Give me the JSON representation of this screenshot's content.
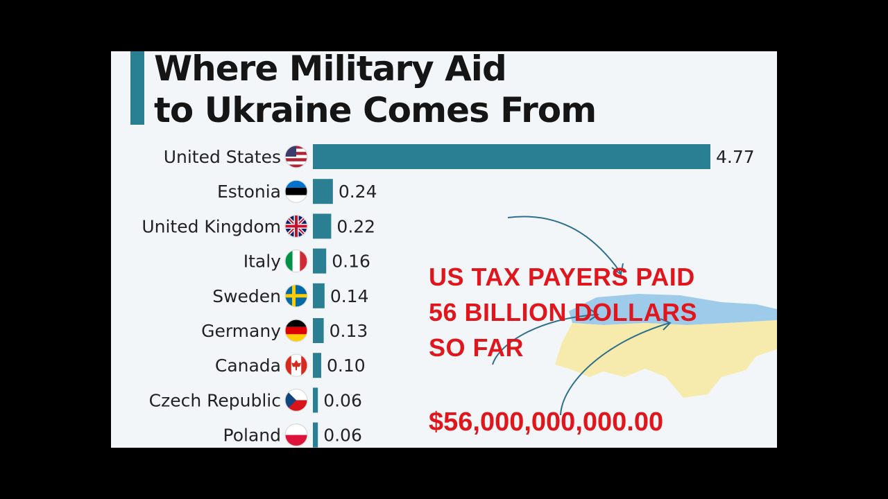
{
  "chart_data": {
    "type": "bar",
    "orientation": "horizontal",
    "title_lines": [
      "Where Military Aid",
      "to Ukraine Comes From"
    ],
    "categories": [
      "United States",
      "Estonia",
      "United Kingdom",
      "Italy",
      "Sweden",
      "Germany",
      "Canada",
      "Czech Republic",
      "Poland"
    ],
    "values": [
      4.77,
      0.24,
      0.22,
      0.16,
      0.14,
      0.13,
      0.1,
      0.06,
      0.06
    ],
    "value_labels": [
      "4.77",
      "0.24",
      "0.22",
      "0.16",
      "0.14",
      "0.13",
      "0.10",
      "0.06",
      "0.06"
    ],
    "flag_icons": [
      "us-flag-icon",
      "estonia-flag-icon",
      "uk-flag-icon",
      "italy-flag-icon",
      "sweden-flag-icon",
      "germany-flag-icon",
      "canada-flag-icon",
      "czech-flag-icon",
      "poland-flag-icon"
    ],
    "bar_color": "#2a7f92",
    "grid": false,
    "xlim": [
      0,
      4.77
    ]
  },
  "overlay": {
    "lines": [
      "US TAX PAYERS PAID",
      "56 BILLION DOLLARS",
      "SO FAR"
    ],
    "amount": "$56,000,000,000.00",
    "color": "#e0161c"
  },
  "background_map": {
    "name": "ukraine-map",
    "colors": [
      "#9fcbeb",
      "#f6ebad"
    ]
  }
}
